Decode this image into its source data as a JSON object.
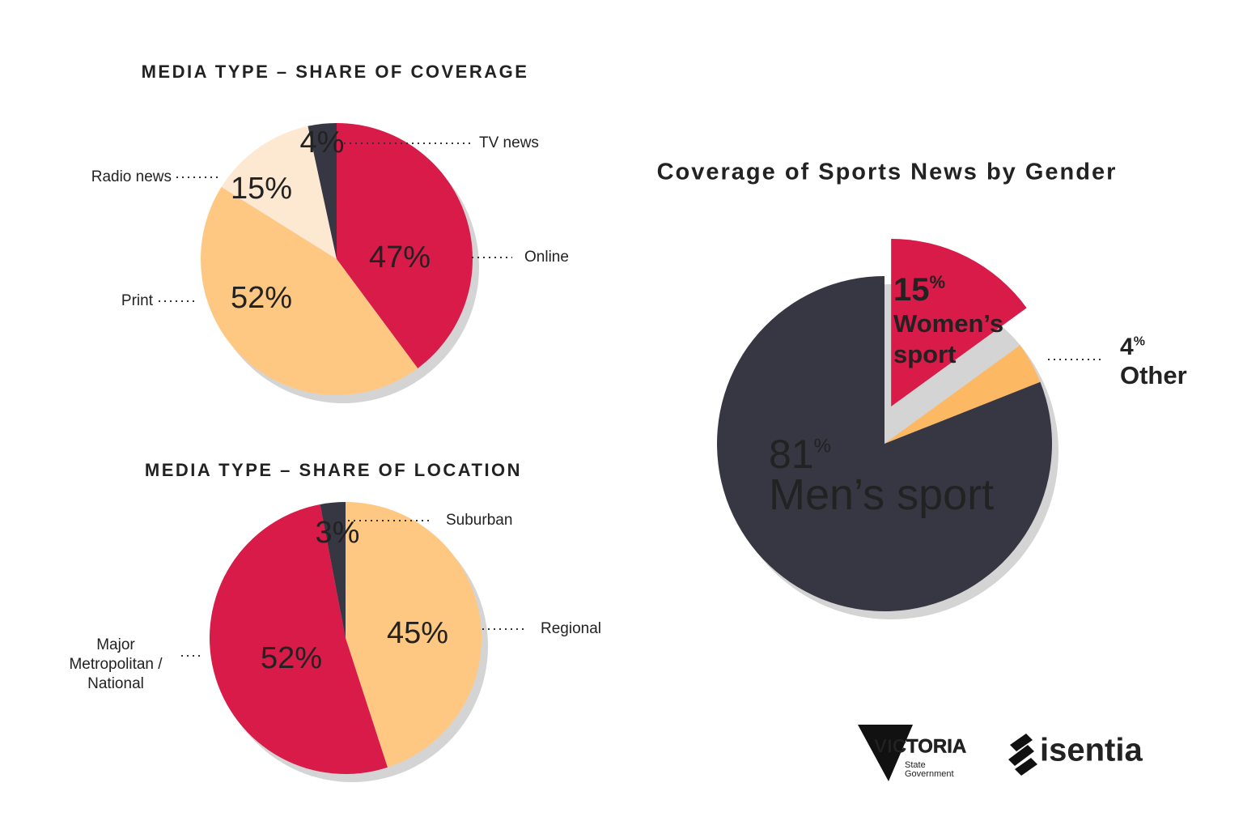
{
  "chart_data": [
    {
      "type": "pie",
      "title": "MEDIA TYPE – SHARE OF COVERAGE",
      "categories": [
        "Online",
        "Print",
        "Radio news",
        "TV news"
      ],
      "values": [
        47,
        52,
        15,
        4
      ],
      "value_labels": [
        "47%",
        "52%",
        "15%",
        "4%"
      ],
      "colors": [
        "#d81b48",
        "#fec882",
        "#fde9d2",
        "#363743"
      ]
    },
    {
      "type": "pie",
      "title": "MEDIA TYPE – SHARE OF LOCATION",
      "categories": [
        "Regional",
        "Major\nMetropolitan /\nNational",
        "Suburban"
      ],
      "values": [
        45,
        52,
        3
      ],
      "value_labels": [
        "45%",
        "52%",
        "3%"
      ],
      "colors": [
        "#fec882",
        "#d81b48",
        "#363743"
      ]
    },
    {
      "type": "pie",
      "title": "Coverage of Sports News by Gender",
      "categories": [
        "Women’s\nsport",
        "Other",
        "Men’s sport"
      ],
      "values": [
        15,
        4,
        81
      ],
      "value_labels": [
        "15%",
        "4%",
        "81%"
      ],
      "colors": [
        "#d81b48",
        "#fdb863",
        "#363743"
      ]
    }
  ],
  "logos": {
    "victoria": [
      "VICTORIA",
      "State",
      "Government"
    ],
    "isentia": "isentia"
  }
}
